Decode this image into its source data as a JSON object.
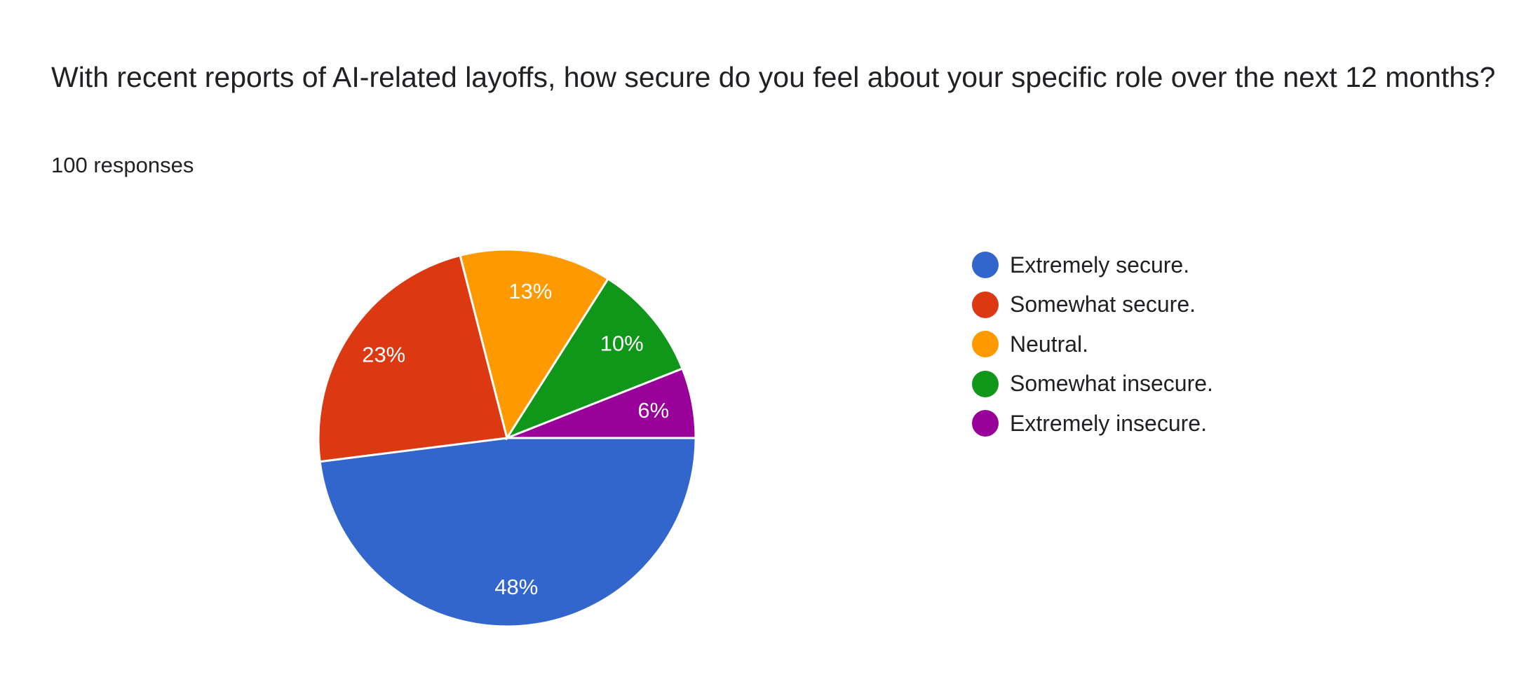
{
  "question": {
    "title": "With recent reports of AI-related layoffs, how secure do you feel about your specific role over the next 12 months?",
    "responses": "100 responses"
  },
  "chart_data": {
    "type": "pie",
    "title": "With recent reports of AI-related layoffs, how secure do you feel about your specific role over the next 12 months?",
    "categories": [
      "Extremely secure.",
      "Somewhat secure.",
      "Neutral.",
      "Somewhat insecure.",
      "Extremely insecure."
    ],
    "values": [
      48,
      23,
      13,
      10,
      6
    ],
    "labels": [
      "48%",
      "23%",
      "13%",
      "10%",
      "6%"
    ],
    "colors": [
      "#3366cc",
      "#dc3912",
      "#ff9900",
      "#109618",
      "#990099"
    ],
    "legend_position": "right"
  }
}
